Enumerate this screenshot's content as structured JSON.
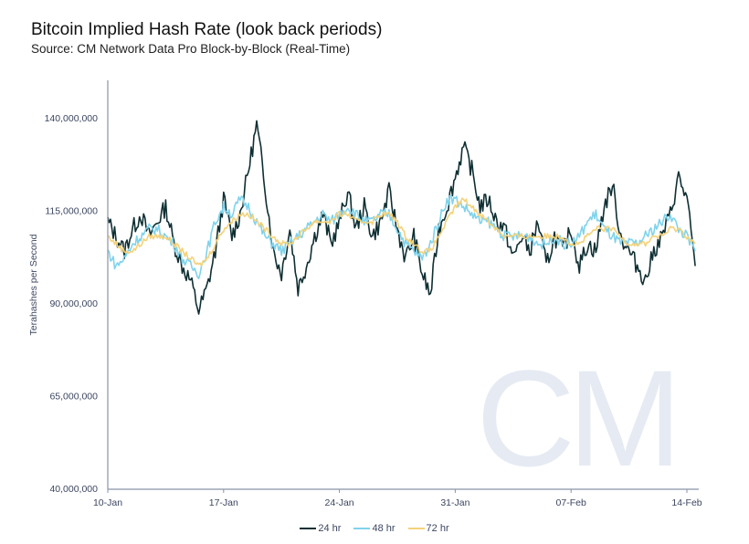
{
  "chart_data": {
    "type": "line",
    "title": "Bitcoin Implied Hash Rate (look back periods)",
    "subtitle": "Source: CM Network Data Pro Block-by-Block (Real-Time)",
    "ylabel": "Terahashes per Second",
    "xlabel": "",
    "ylim": [
      40000000,
      150000000
    ],
    "yticks": [
      "140,000,000",
      "115,000,000",
      "90,000,000",
      "65,000,000",
      "40,000,000"
    ],
    "ytick_values": [
      140000000,
      115000000,
      90000000,
      65000000,
      40000000
    ],
    "xticks": [
      "10-Jan",
      "17-Jan",
      "24-Jan",
      "31-Jan",
      "07-Feb",
      "14-Feb"
    ],
    "xtick_days": [
      0,
      7,
      14,
      21,
      28,
      35
    ],
    "x_step_days": 0.5,
    "x_range_days": [
      0,
      35.7
    ],
    "value_unit": "millions TH/s",
    "legend_position": "bottom",
    "watermark": "CM",
    "series": [
      {
        "name": "24 hr",
        "color": "#0f2f33",
        "values": [
          112,
          108,
          104,
          110,
          114,
          108,
          112,
          116,
          106,
          100,
          96,
          88,
          94,
          104,
          118,
          108,
          114,
          126,
          138,
          122,
          104,
          98,
          110,
          94,
          100,
          108,
          114,
          106,
          112,
          120,
          110,
          116,
          108,
          112,
          120,
          110,
          102,
          108,
          98,
          92,
          110,
          116,
          124,
          132,
          126,
          116,
          118,
          112,
          110,
          102,
          108,
          104,
          112,
          100,
          108,
          104,
          110,
          100,
          106,
          104,
          116,
          122,
          108,
          104,
          100,
          96,
          104,
          108,
          114,
          124,
          118,
          100
        ]
      },
      {
        "name": "48 hr",
        "color": "#7fd3ec",
        "values": [
          104,
          100,
          102,
          106,
          108,
          110,
          110,
          108,
          106,
          102,
          100,
          98,
          104,
          112,
          116,
          114,
          118,
          116,
          112,
          108,
          106,
          104,
          106,
          108,
          110,
          112,
          114,
          112,
          114,
          116,
          114,
          112,
          112,
          114,
          114,
          110,
          106,
          104,
          102,
          106,
          112,
          118,
          118,
          116,
          114,
          112,
          112,
          110,
          108,
          108,
          108,
          108,
          106,
          106,
          108,
          106,
          106,
          108,
          112,
          114,
          110,
          108,
          106,
          106,
          106,
          108,
          110,
          112,
          114,
          110,
          108,
          104
        ]
      },
      {
        "name": "72 hr",
        "color": "#f4d27a",
        "values": [
          108,
          106,
          104,
          104,
          106,
          108,
          108,
          108,
          106,
          104,
          102,
          100,
          102,
          106,
          110,
          112,
          114,
          114,
          112,
          110,
          108,
          106,
          106,
          108,
          110,
          112,
          112,
          112,
          114,
          114,
          112,
          112,
          112,
          114,
          114,
          112,
          108,
          106,
          104,
          104,
          108,
          112,
          116,
          118,
          116,
          114,
          112,
          110,
          108,
          108,
          108,
          108,
          108,
          108,
          108,
          108,
          106,
          106,
          108,
          110,
          110,
          110,
          108,
          106,
          106,
          106,
          108,
          108,
          110,
          110,
          108,
          106
        ]
      }
    ]
  }
}
